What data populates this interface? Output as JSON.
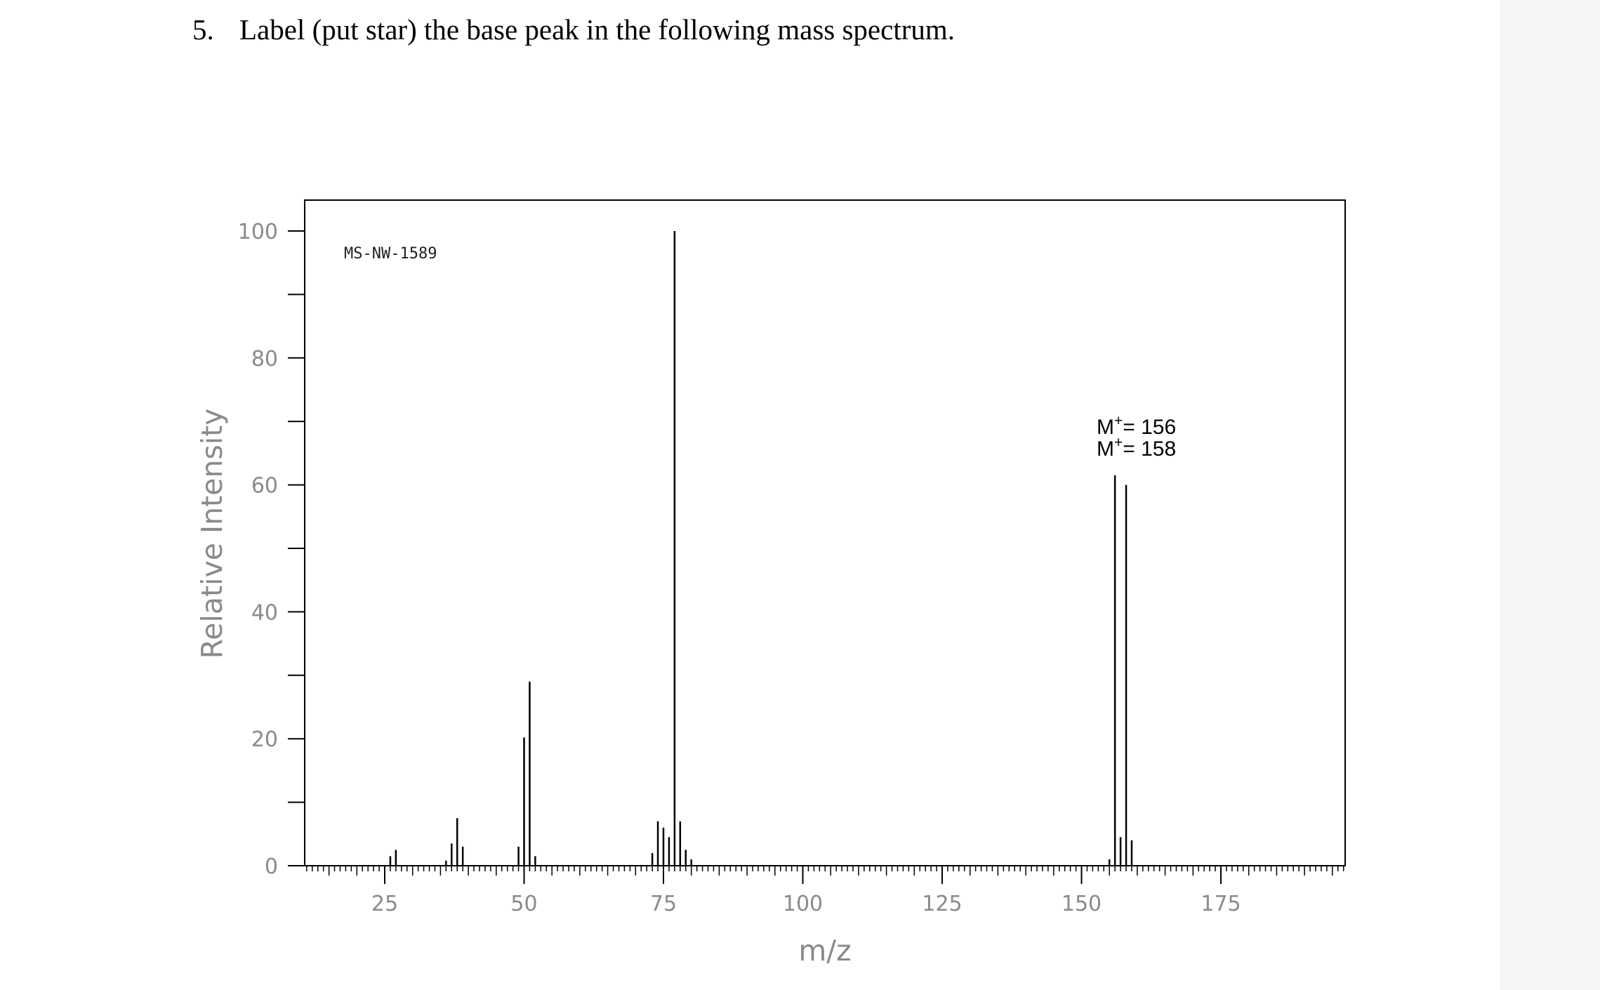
{
  "question": {
    "number": "5.",
    "text": "Label (put star) the base peak in the following mass spectrum."
  },
  "colors": {
    "axis_text": "#8a8a8a",
    "ink": "#000000",
    "sidebar": "#f5f5f5"
  },
  "chart_data": {
    "type": "bar",
    "title": "",
    "xlabel": "m/z",
    "ylabel": "Relative Intensity",
    "xlim": [
      10,
      197
    ],
    "ylim": [
      0,
      100
    ],
    "code_label": "MS-NW-1589",
    "xticks": [
      25,
      50,
      75,
      100,
      125,
      150,
      175
    ],
    "yticks": [
      0,
      20,
      40,
      60,
      80,
      100
    ],
    "annotations": [
      {
        "symbol": "M",
        "sup": "+",
        "text": "= 156"
      },
      {
        "symbol": "M",
        "sup": "+",
        "text": "= 158"
      }
    ],
    "peaks": [
      {
        "mz": 26,
        "intensity": 1.5
      },
      {
        "mz": 27,
        "intensity": 2.5
      },
      {
        "mz": 36,
        "intensity": 0.8
      },
      {
        "mz": 37,
        "intensity": 3.5
      },
      {
        "mz": 38,
        "intensity": 7.5
      },
      {
        "mz": 39,
        "intensity": 3.0
      },
      {
        "mz": 49,
        "intensity": 3.0
      },
      {
        "mz": 50,
        "intensity": 20.2
      },
      {
        "mz": 51,
        "intensity": 29.0
      },
      {
        "mz": 52,
        "intensity": 1.5
      },
      {
        "mz": 73,
        "intensity": 2.0
      },
      {
        "mz": 74,
        "intensity": 7.0
      },
      {
        "mz": 75,
        "intensity": 6.0
      },
      {
        "mz": 76,
        "intensity": 4.5
      },
      {
        "mz": 77,
        "intensity": 100
      },
      {
        "mz": 78,
        "intensity": 7.0
      },
      {
        "mz": 79,
        "intensity": 2.5
      },
      {
        "mz": 80,
        "intensity": 1.0
      },
      {
        "mz": 155,
        "intensity": 1.0
      },
      {
        "mz": 156,
        "intensity": 61.5
      },
      {
        "mz": 157,
        "intensity": 4.5
      },
      {
        "mz": 158,
        "intensity": 60.0
      },
      {
        "mz": 159,
        "intensity": 4.0
      }
    ]
  }
}
